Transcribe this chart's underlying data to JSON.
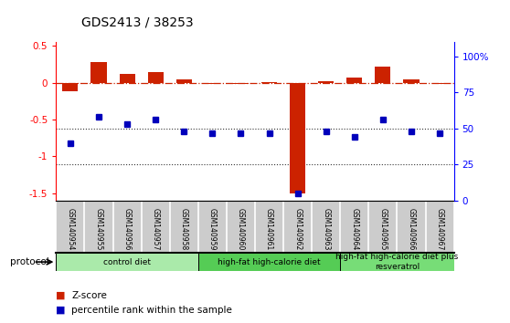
{
  "title": "GDS2413 / 38253",
  "samples": [
    "GSM140954",
    "GSM140955",
    "GSM140956",
    "GSM140957",
    "GSM140958",
    "GSM140959",
    "GSM140960",
    "GSM140961",
    "GSM140962",
    "GSM140963",
    "GSM140964",
    "GSM140965",
    "GSM140966",
    "GSM140967"
  ],
  "zscore": [
    -0.12,
    0.28,
    0.12,
    0.14,
    0.04,
    -0.02,
    -0.02,
    0.01,
    -1.5,
    0.02,
    0.07,
    0.22,
    0.04,
    -0.02
  ],
  "percentile_pct": [
    40,
    58,
    53,
    56,
    48,
    47,
    47,
    47,
    5,
    48,
    44,
    56,
    48,
    47
  ],
  "groups": [
    {
      "label": "control diet",
      "start": 0,
      "end": 5,
      "color": "#aaeaaa"
    },
    {
      "label": "high-fat high-calorie diet",
      "start": 5,
      "end": 10,
      "color": "#55cc55"
    },
    {
      "label": "high-fat high-calorie diet plus\nresveratrol",
      "start": 10,
      "end": 14,
      "color": "#77dd77"
    }
  ],
  "ylim_left": [
    -1.6,
    0.55
  ],
  "yticks_left": [
    0.5,
    0.0,
    -0.5,
    -1.0,
    -1.5
  ],
  "ytick_labels_left": [
    "0.5",
    "0",
    "-0.5",
    "-1",
    "-1.5"
  ],
  "yticks_right_pct": [
    100,
    75,
    50,
    25,
    0
  ],
  "ytick_labels_right": [
    "100%",
    "75",
    "50",
    "25",
    "0"
  ],
  "ylim_right": [
    0,
    110
  ],
  "bar_color": "#cc2200",
  "dot_color": "#0000bb",
  "legend_zscore": "Z-score",
  "legend_pct": "percentile rank within the sample",
  "background_color": "#ffffff",
  "dotted_line_color": "#333333",
  "dashed_line_color": "#cc2200",
  "label_bg": "#cccccc"
}
